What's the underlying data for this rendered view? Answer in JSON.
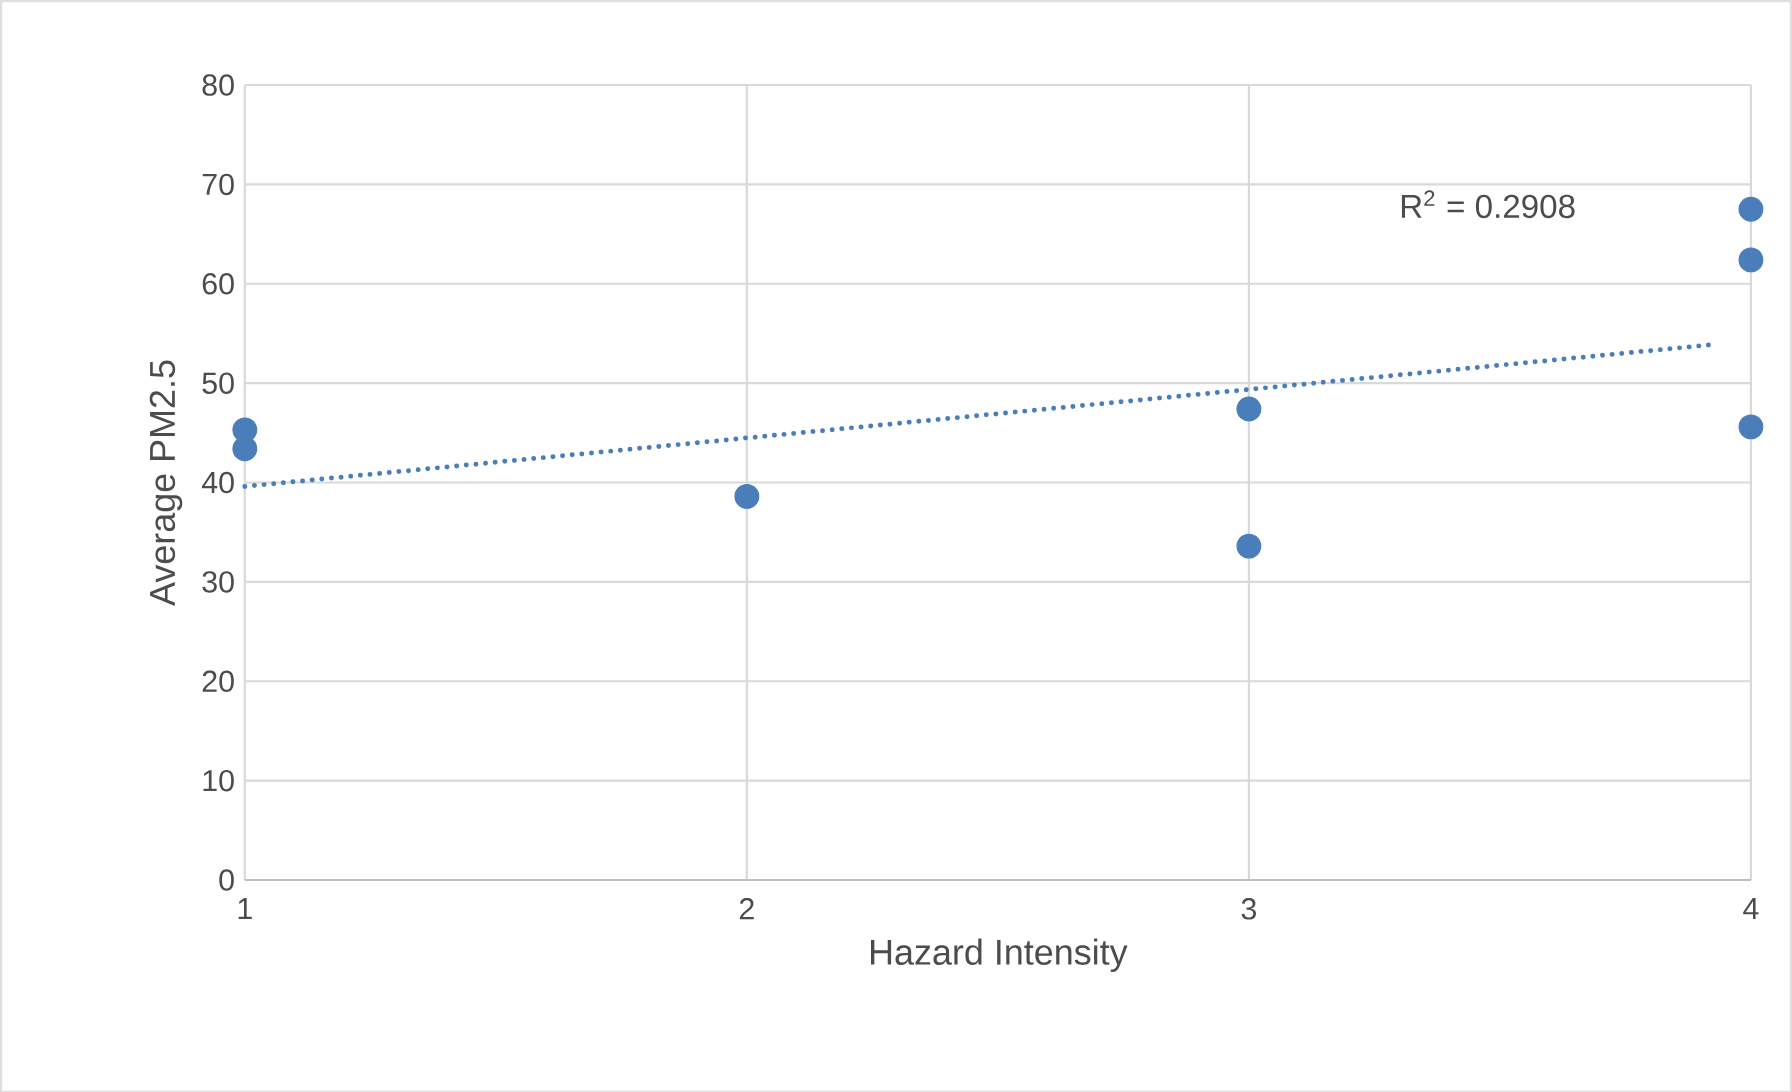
{
  "chart_data": {
    "type": "scatter",
    "xlabel": "Hazard Intensity",
    "ylabel": "Average PM2.5",
    "xlim": [
      1,
      4
    ],
    "ylim": [
      0,
      80
    ],
    "xticks": [
      1,
      2,
      3,
      4
    ],
    "yticks": [
      0,
      10,
      20,
      30,
      40,
      50,
      60,
      70,
      80
    ],
    "grid": true,
    "series": [
      {
        "marker": "circle",
        "x": [
          1,
          1,
          2,
          3,
          3,
          4,
          4,
          4
        ],
        "values": [
          45.3,
          43.4,
          38.6,
          47.4,
          33.6,
          67.5,
          62.4,
          45.6
        ],
        "color": "#4a7ebb"
      },
      {
        "type": "line",
        "line_style": "dotted",
        "marker": "none",
        "x": [
          1,
          3.93
        ],
        "values": [
          39.6,
          53.9
        ],
        "color": "#4a7ebb"
      }
    ],
    "annotations": [
      "R$^{2}$ = 0.2908"
    ]
  }
}
